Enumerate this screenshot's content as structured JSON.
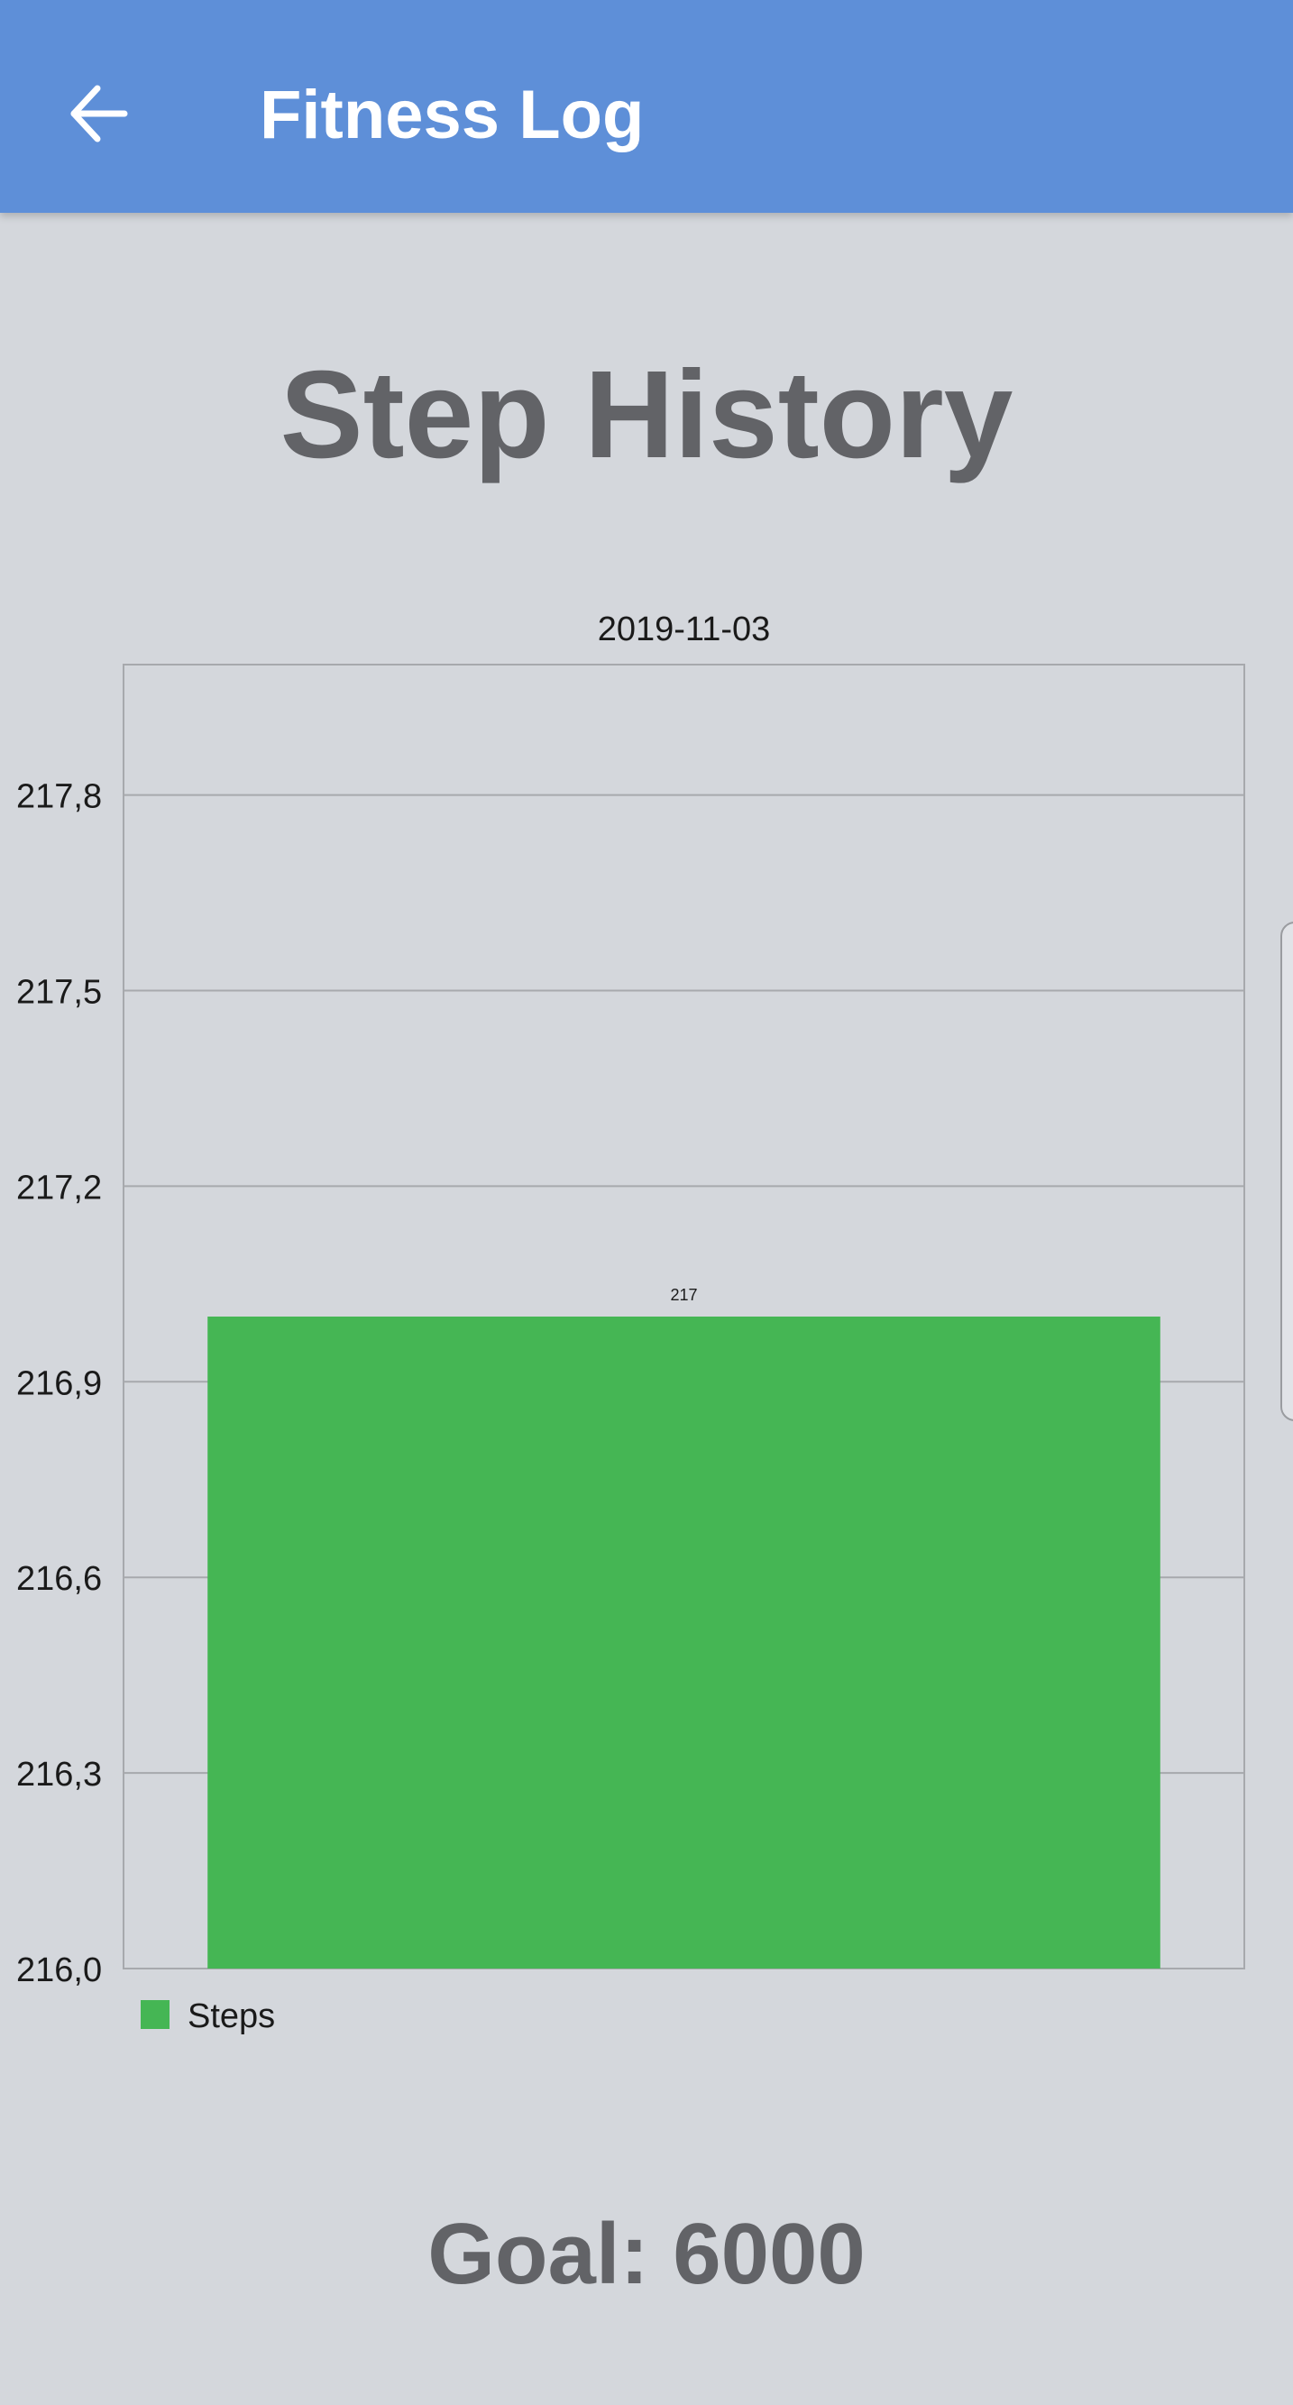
{
  "app_bar": {
    "title": "Fitness Log",
    "back_icon": "arrow-left-icon"
  },
  "page": {
    "heading": "Step History",
    "goal": "Goal: 6000"
  },
  "colors": {
    "app_bar": "#5e8fd8",
    "background": "#d4d7dc",
    "bar": "#45b654",
    "heading_text": "#626367"
  },
  "chart_data": {
    "type": "bar",
    "categories": [
      "2019-11-03"
    ],
    "series": [
      {
        "name": "Steps",
        "values": [
          217
        ],
        "color": "#45b654"
      }
    ],
    "data_labels": [
      "217"
    ],
    "y_ticks": [
      "217,8",
      "217,5",
      "217,2",
      "216,9",
      "216,6",
      "216,3",
      "216,0"
    ],
    "y_tick_values": [
      217.8,
      217.5,
      217.2,
      216.9,
      216.6,
      216.3,
      216.0
    ],
    "ylim": [
      216.0,
      218.0
    ],
    "xaxis_position": "top",
    "grid": true,
    "legend": "bottom-left"
  }
}
